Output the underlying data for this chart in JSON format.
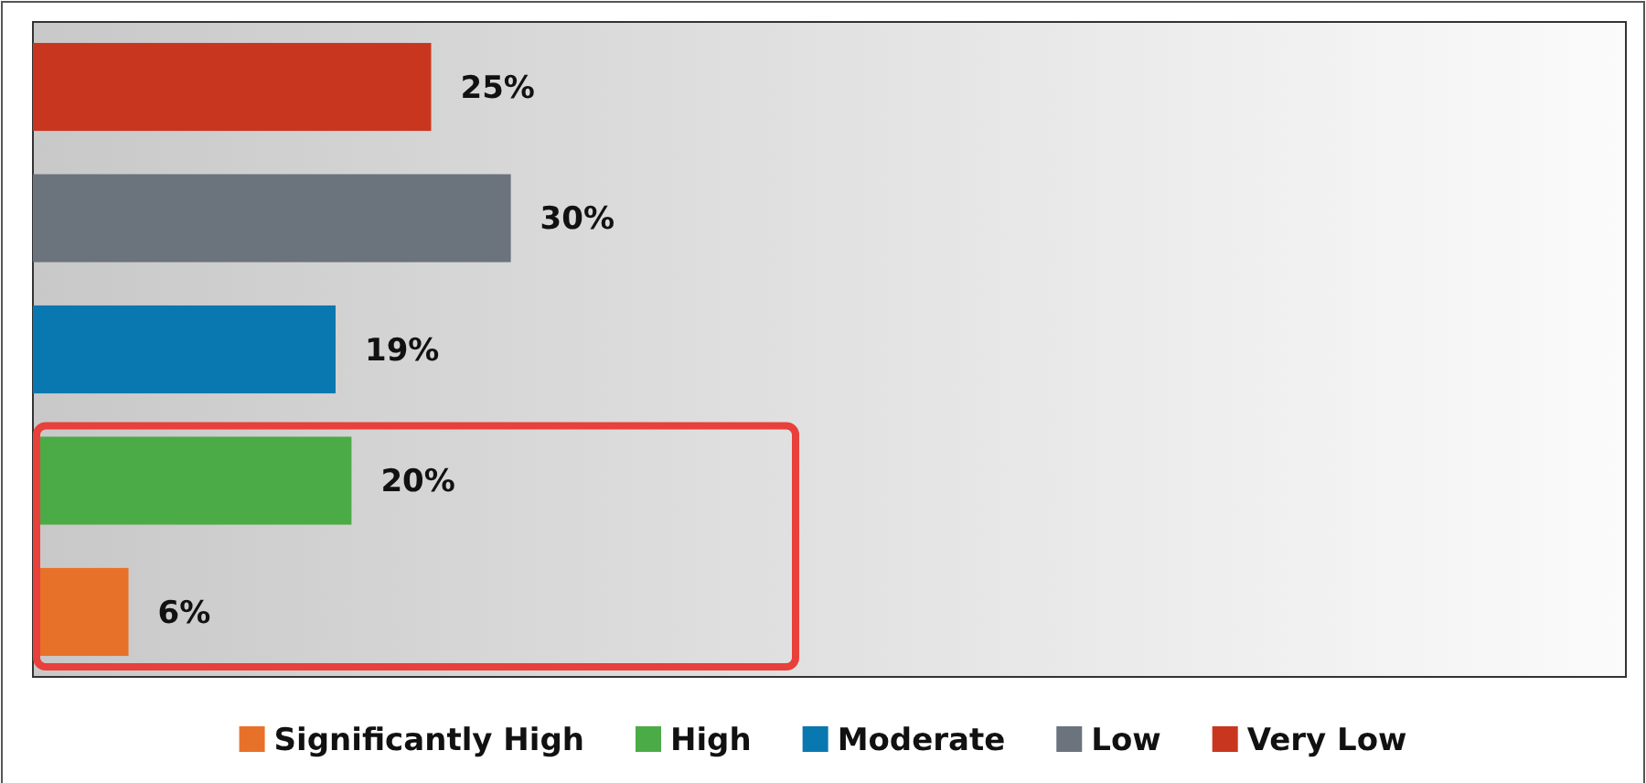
{
  "chart_data": {
    "type": "bar",
    "orientation": "horizontal",
    "categories": [
      null,
      null,
      null,
      null,
      null
    ],
    "values": [
      25,
      30,
      19,
      20,
      6
    ],
    "xlim": [
      0,
      100
    ],
    "colors": [
      "#c9361f",
      "#6b737d",
      "#0a78b0",
      "#4bab47",
      "#e8712a"
    ],
    "value_labels": [
      "25%",
      "30%",
      "19%",
      "20%",
      "6%"
    ],
    "annotations": [
      "Significantly High",
      "High",
      "Moderate",
      "Low",
      "Very Low"
    ],
    "tick_labels": false
  }
}
